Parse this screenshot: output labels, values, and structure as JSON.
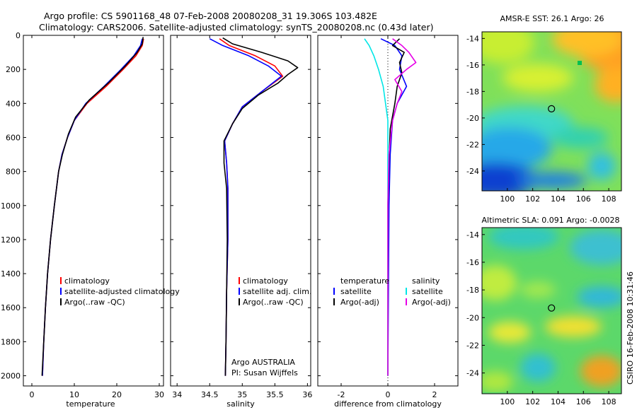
{
  "title_line1": "Argo profile: CS 5901168_48 07-Feb-2008 20080208_31 19.306S 103.482E",
  "title_line2": "Climatology: CARS2006. Satellite-adjusted climatology: synTS_20080208.nc (0.43d later)",
  "side_stamp": "CSIRO 16-Feb-2008 10:31:46",
  "colors": {
    "climatology": "#ff0000",
    "satellite": "#0000ff",
    "argo": "#000000",
    "sat_salinity": "#00e6e6",
    "argo_salinity": "#e600e6"
  },
  "chart_data": [
    {
      "type": "line",
      "xlabel": "temperature",
      "ylabel": "",
      "xlim": [
        -2,
        31
      ],
      "ylim": [
        2060,
        0
      ],
      "xticks": [
        0,
        10,
        20,
        30
      ],
      "yticks": [
        0,
        200,
        400,
        600,
        800,
        1000,
        1200,
        1400,
        1600,
        1800,
        2000
      ],
      "legend": [
        "climatology",
        "satellite-adjusted climatology",
        "Argo(..raw -QC)"
      ],
      "series": [
        {
          "name": "climatology",
          "color": "climatology",
          "points": [
            [
              26.3,
              20
            ],
            [
              26.0,
              60
            ],
            [
              24.5,
              120
            ],
            [
              21.5,
              200
            ],
            [
              17.5,
              300
            ],
            [
              13.0,
              400
            ],
            [
              10.0,
              500
            ],
            [
              8.4,
              600
            ],
            [
              7.1,
              700
            ],
            [
              6.3,
              800
            ],
            [
              5.3,
              1000
            ],
            [
              4.4,
              1200
            ],
            [
              3.7,
              1400
            ],
            [
              3.2,
              1600
            ],
            [
              2.8,
              1800
            ],
            [
              2.5,
              2000
            ]
          ]
        },
        {
          "name": "satellite-adjusted climatology",
          "color": "satellite",
          "points": [
            [
              26.0,
              20
            ],
            [
              25.6,
              60
            ],
            [
              24.0,
              120
            ],
            [
              21.0,
              200
            ],
            [
              17.0,
              300
            ],
            [
              12.7,
              400
            ],
            [
              10.0,
              500
            ],
            [
              8.4,
              600
            ],
            [
              7.1,
              700
            ],
            [
              6.3,
              800
            ],
            [
              5.3,
              1000
            ],
            [
              4.4,
              1200
            ],
            [
              3.7,
              1400
            ],
            [
              3.2,
              1600
            ],
            [
              2.8,
              1800
            ],
            [
              2.5,
              2000
            ]
          ]
        },
        {
          "name": "Argo(..raw -QC)",
          "color": "argo",
          "points": [
            [
              26.2,
              10
            ],
            [
              26.0,
              50
            ],
            [
              24.8,
              100
            ],
            [
              22.0,
              180
            ],
            [
              18.0,
              280
            ],
            [
              13.5,
              380
            ],
            [
              10.3,
              480
            ],
            [
              8.6,
              580
            ],
            [
              7.2,
              700
            ],
            [
              6.3,
              800
            ],
            [
              5.3,
              1000
            ],
            [
              4.4,
              1200
            ],
            [
              3.7,
              1400
            ],
            [
              3.2,
              1600
            ],
            [
              2.8,
              1800
            ],
            [
              2.4,
              2000
            ]
          ]
        }
      ]
    },
    {
      "type": "line",
      "xlabel": "salinity",
      "xlim": [
        33.9,
        36.05
      ],
      "ylim": [
        2060,
        0
      ],
      "xticks": [
        34,
        34.5,
        35,
        35.5,
        36
      ],
      "tick_labels": [
        "34",
        "34.5",
        "35",
        "35.5",
        "36"
      ],
      "legend": [
        "climatology",
        "satellite adj. clim.",
        "Argo(..raw -QC)"
      ],
      "annotation_lines": [
        "Argo AUSTRALIA",
        "PI: Susan Wijffels"
      ],
      "series": [
        {
          "name": "climatology",
          "color": "climatology",
          "points": [
            [
              34.65,
              20
            ],
            [
              34.8,
              60
            ],
            [
              35.2,
              120
            ],
            [
              35.5,
              180
            ],
            [
              35.62,
              240
            ],
            [
              35.3,
              330
            ],
            [
              35.0,
              420
            ],
            [
              34.85,
              520
            ],
            [
              34.73,
              620
            ],
            [
              34.76,
              750
            ],
            [
              34.78,
              900
            ],
            [
              34.78,
              1200
            ],
            [
              34.76,
              1500
            ],
            [
              34.75,
              1800
            ],
            [
              34.74,
              2000
            ]
          ]
        },
        {
          "name": "satellite adj. clim.",
          "color": "satellite",
          "points": [
            [
              34.5,
              20
            ],
            [
              34.7,
              60
            ],
            [
              35.1,
              120
            ],
            [
              35.4,
              180
            ],
            [
              35.6,
              240
            ],
            [
              35.3,
              330
            ],
            [
              35.0,
              420
            ],
            [
              34.85,
              520
            ],
            [
              34.73,
              620
            ],
            [
              34.76,
              750
            ],
            [
              34.78,
              900
            ],
            [
              34.78,
              1200
            ],
            [
              34.76,
              1500
            ],
            [
              34.75,
              1800
            ],
            [
              34.74,
              2000
            ]
          ]
        },
        {
          "name": "Argo(..raw -QC)",
          "color": "argo",
          "points": [
            [
              34.7,
              15
            ],
            [
              34.85,
              50
            ],
            [
              35.3,
              100
            ],
            [
              35.7,
              150
            ],
            [
              35.85,
              190
            ],
            [
              35.7,
              230
            ],
            [
              35.55,
              280
            ],
            [
              35.25,
              350
            ],
            [
              35.0,
              430
            ],
            [
              34.85,
              520
            ],
            [
              34.72,
              620
            ],
            [
              34.72,
              750
            ],
            [
              34.76,
              900
            ],
            [
              34.77,
              1200
            ],
            [
              34.76,
              1500
            ],
            [
              34.75,
              1800
            ],
            [
              34.74,
              2000
            ]
          ]
        }
      ]
    },
    {
      "type": "line",
      "xlabel": "difference from climatology",
      "xlim": [
        -3,
        3
      ],
      "ylim": [
        2060,
        0
      ],
      "xticks": [
        -2,
        0,
        2
      ],
      "legend_left_title": "temperature",
      "legend_left": [
        "satellite",
        "Argo(-adj)"
      ],
      "legend_right_title": "salinity",
      "legend_right": [
        "satellite",
        "Argo(-adj)"
      ],
      "series": [
        {
          "name": "temperature satellite",
          "color": "satellite",
          "points": [
            [
              -0.3,
              20
            ],
            [
              0.3,
              60
            ],
            [
              0.6,
              120
            ],
            [
              0.5,
              200
            ],
            [
              0.8,
              300
            ],
            [
              0.4,
              400
            ],
            [
              0.2,
              500
            ],
            [
              0.1,
              700
            ],
            [
              0.05,
              1000
            ],
            [
              0.0,
              2000
            ]
          ]
        },
        {
          "name": "temperature Argo(-adj)",
          "color": "argo",
          "points": [
            [
              0.5,
              20
            ],
            [
              0.2,
              60
            ],
            [
              0.7,
              100
            ],
            [
              0.5,
              160
            ],
            [
              0.6,
              220
            ],
            [
              0.4,
              300
            ],
            [
              0.3,
              400
            ],
            [
              0.1,
              550
            ],
            [
              0.05,
              750
            ],
            [
              0.0,
              1000
            ],
            [
              0.0,
              2000
            ]
          ]
        },
        {
          "name": "salinity satellite",
          "color": "sat_salinity",
          "points": [
            [
              -1.0,
              20
            ],
            [
              -0.8,
              60
            ],
            [
              -0.6,
              120
            ],
            [
              -0.4,
              200
            ],
            [
              -0.2,
              300
            ],
            [
              -0.1,
              400
            ],
            [
              0.0,
              500
            ],
            [
              0.0,
              2000
            ]
          ]
        },
        {
          "name": "salinity Argo(-adj)",
          "color": "argo_salinity",
          "points": [
            [
              0.2,
              20
            ],
            [
              0.6,
              60
            ],
            [
              0.9,
              100
            ],
            [
              1.2,
              160
            ],
            [
              0.8,
              200
            ],
            [
              0.3,
              260
            ],
            [
              0.6,
              330
            ],
            [
              0.4,
              400
            ],
            [
              0.2,
              500
            ],
            [
              0.05,
              700
            ],
            [
              0.0,
              1000
            ],
            [
              0.0,
              2000
            ]
          ]
        }
      ]
    },
    {
      "type": "heatmap",
      "title": "AMSR-E SST: 26.1  Argo: 26",
      "xlim": [
        98,
        109
      ],
      "ylim": [
        -25.5,
        -13.5
      ],
      "xticks": [
        100,
        102,
        104,
        106,
        108
      ],
      "yticks": [
        -14,
        -16,
        -18,
        -20,
        -22,
        -24
      ],
      "marker": [
        103.482,
        -19.306
      ]
    },
    {
      "type": "heatmap",
      "title": "Altimetric SLA: 0.091  Argo: -0.0028",
      "xlim": [
        98,
        109
      ],
      "ylim": [
        -25.5,
        -13.5
      ],
      "xticks": [
        100,
        102,
        104,
        106,
        108
      ],
      "yticks": [
        -14,
        -16,
        -18,
        -20,
        -22,
        -24
      ],
      "marker": [
        103.482,
        -19.306
      ]
    }
  ]
}
